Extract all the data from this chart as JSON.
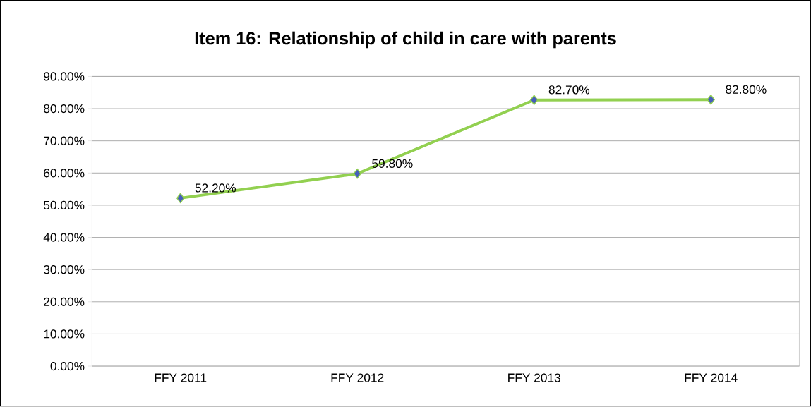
{
  "chart_data": {
    "type": "line",
    "title": "Item 16:  Relationship of child in care with parents",
    "categories": [
      "FFY 2011",
      "FFY 2012",
      "FFY 2013",
      "FFY 2014"
    ],
    "series": [
      {
        "color": "#92d050",
        "values": [
          52.2,
          59.8,
          82.7,
          82.8
        ],
        "value_labels": [
          "52.20%",
          "59.80%",
          "82.70%",
          "82.80%"
        ]
      }
    ],
    "ylim": [
      0,
      90
    ],
    "yticks": [
      {
        "value": 0,
        "label": "0.00%"
      },
      {
        "value": 10,
        "label": "10.00%"
      },
      {
        "value": 20,
        "label": "20.00%"
      },
      {
        "value": 30,
        "label": "30.00%"
      },
      {
        "value": 40,
        "label": "40.00%"
      },
      {
        "value": 50,
        "label": "50.00%"
      },
      {
        "value": 60,
        "label": "60.00%"
      },
      {
        "value": 70,
        "label": "70.00%"
      },
      {
        "value": 80,
        "label": "80.00%"
      },
      {
        "value": 90,
        "label": "90.00%"
      }
    ],
    "grid": "y",
    "marker": "diamond",
    "line_style": "solid"
  }
}
